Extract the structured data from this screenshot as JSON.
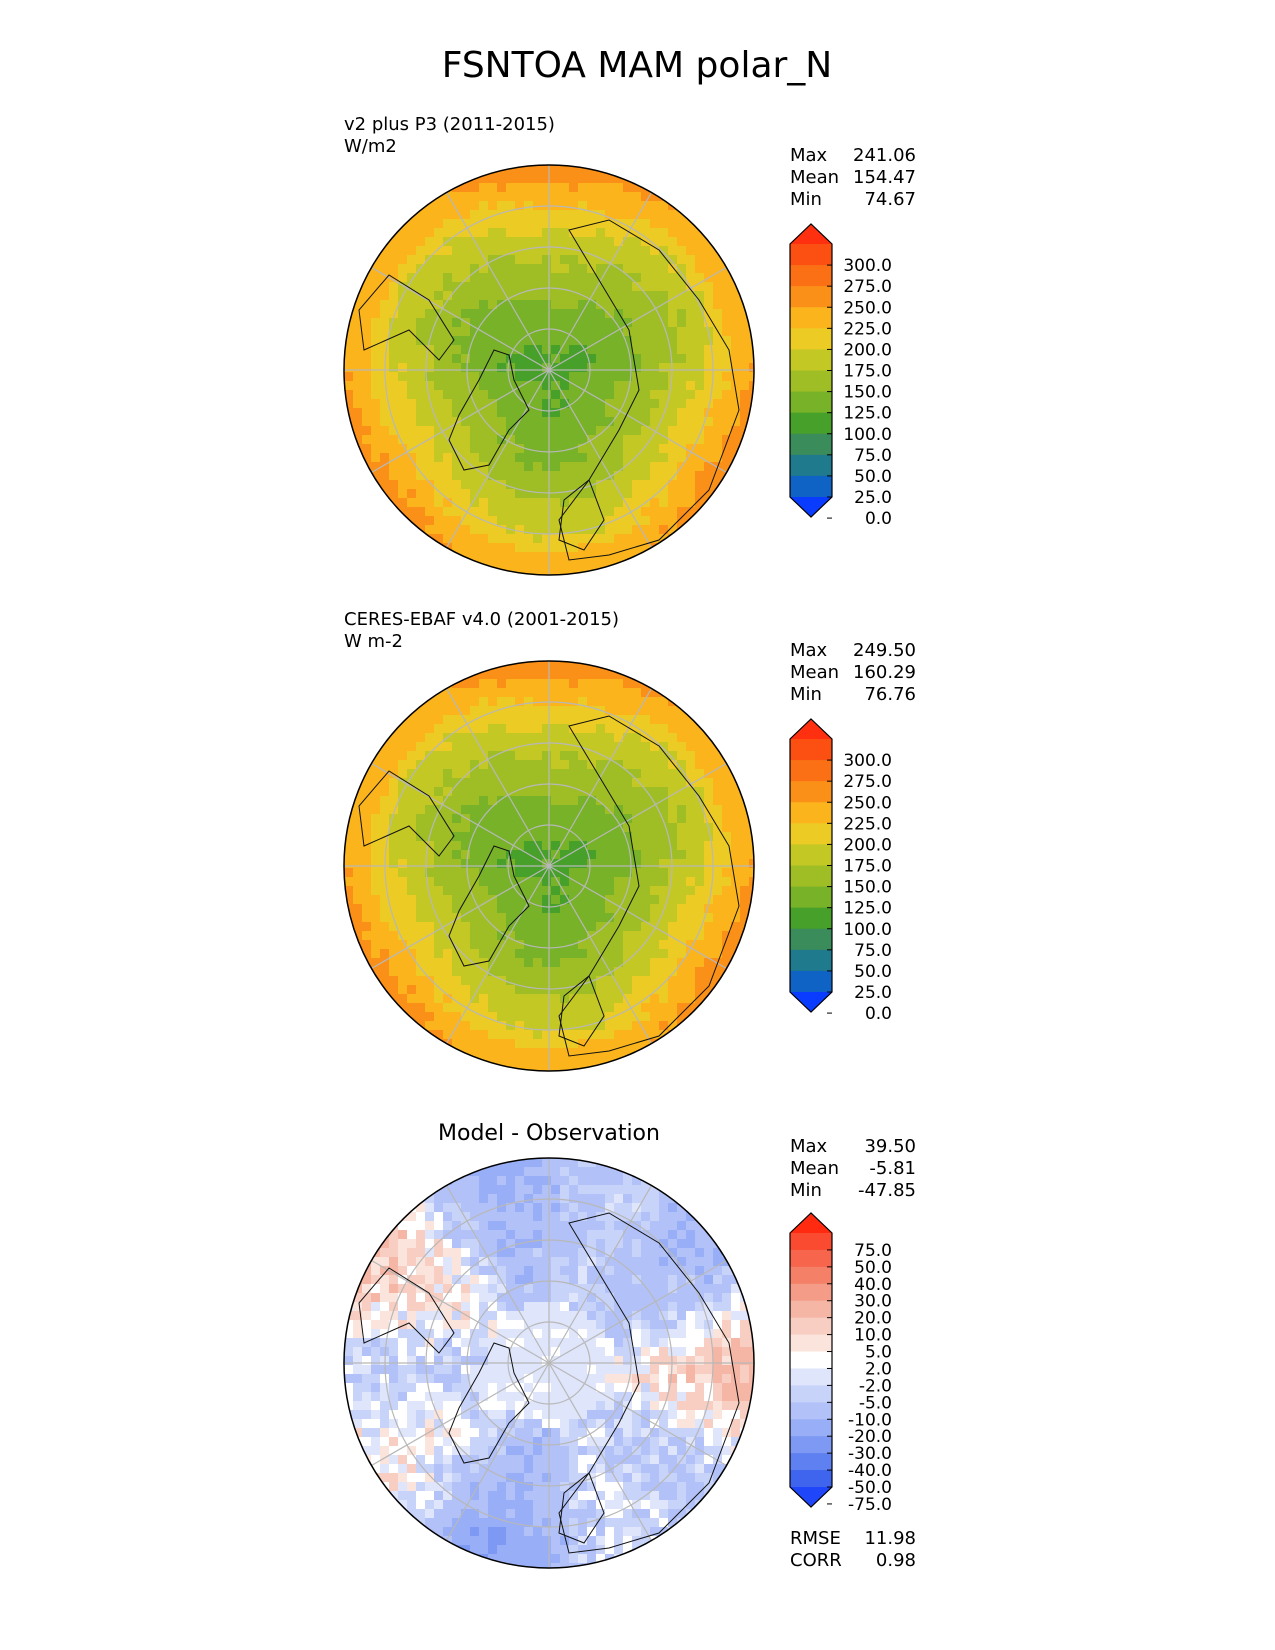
{
  "figure": {
    "title": "FSNTOA MAM polar_N"
  },
  "panels": [
    {
      "id": "test",
      "label_line1": "v2 plus P3 (2011-2015)",
      "label_line2": "W/m2",
      "stats": [
        {
          "name": "Max",
          "value": "241.06"
        },
        {
          "name": "Mean",
          "value": "154.47"
        },
        {
          "name": "Min",
          "value": "74.67"
        }
      ],
      "palette": "absolute"
    },
    {
      "id": "reference",
      "label_line1": "CERES-EBAF v4.0 (2001-2015)",
      "label_line2": "W m-2",
      "stats": [
        {
          "name": "Max",
          "value": "249.50"
        },
        {
          "name": "Mean",
          "value": "160.29"
        },
        {
          "name": "Min",
          "value": "76.76"
        }
      ],
      "palette": "absolute"
    },
    {
      "id": "difference",
      "title": "Model - Observation",
      "stats": [
        {
          "name": "Max",
          "value": "39.50"
        },
        {
          "name": "Mean",
          "value": "-5.81"
        },
        {
          "name": "Min",
          "value": "-47.85"
        }
      ],
      "metrics": [
        {
          "name": "RMSE",
          "value": "11.98"
        },
        {
          "name": "CORR",
          "value": "0.98"
        }
      ],
      "palette": "difference"
    }
  ],
  "colorbars": {
    "absolute": {
      "tick_labels": [
        "300.0",
        "275.0",
        "250.0",
        "225.0",
        "200.0",
        "175.0",
        "150.0",
        "125.0",
        "100.0",
        "75.0",
        "50.0",
        "25.0",
        "0.0"
      ],
      "colors_top_to_bottom": [
        "#ff3010",
        "#fb5012",
        "#fb7014",
        "#fb9018",
        "#fbb41c",
        "#eccb25",
        "#c4c824",
        "#9fbe26",
        "#77b228",
        "#47a02a",
        "#3a8c5a",
        "#1e7a8c",
        "#0f63c4",
        "#0a3cff"
      ]
    },
    "difference": {
      "tick_labels": [
        "75.0",
        "50.0",
        "40.0",
        "30.0",
        "20.0",
        "10.0",
        "5.0",
        "2.0",
        "-2.0",
        "-5.0",
        "-10.0",
        "-20.0",
        "-30.0",
        "-40.0",
        "-50.0",
        "-75.0"
      ],
      "colors_top_to_bottom": [
        "#ff2a10",
        "#fa4a30",
        "#f6654c",
        "#f48068",
        "#f49c88",
        "#f6b6a6",
        "#f8cec2",
        "#fbe4dc",
        "#ffffff",
        "#dfe5fb",
        "#c8d3fa",
        "#b2c2f8",
        "#98aef6",
        "#7e99f3",
        "#5f80f0",
        "#3f64ee",
        "#1f46f8"
      ]
    },
    "map_fields": {
      "absolute": {
        "pole_value": 90,
        "mid_value": 150,
        "outer_value": 218,
        "note": "field colors for map rendering"
      },
      "difference": {
        "pattern": "mixed"
      }
    }
  }
}
